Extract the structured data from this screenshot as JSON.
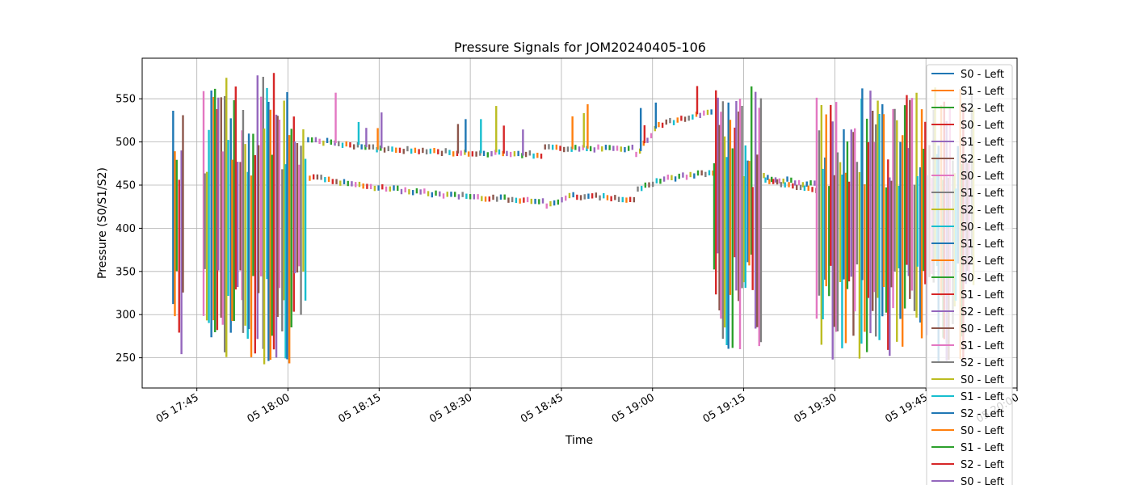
{
  "chart_data": {
    "type": "line",
    "title": "Pressure Signals for JOM20240405-106",
    "xlabel": "Time",
    "ylabel": "Pressure (S0/S1/S2)",
    "grid": true,
    "legend_position": "upper-right",
    "x_axis": {
      "type": "time",
      "range": [
        "2024-04-05 17:36",
        "2024-04-05 20:00"
      ],
      "ticks": [
        {
          "time": "2024-04-05 17:45",
          "label": "05 17:45"
        },
        {
          "time": "2024-04-05 18:00",
          "label": "05 18:00"
        },
        {
          "time": "2024-04-05 18:15",
          "label": "05 18:15"
        },
        {
          "time": "2024-04-05 18:30",
          "label": "05 18:30"
        },
        {
          "time": "2024-04-05 18:45",
          "label": "05 18:45"
        },
        {
          "time": "2024-04-05 19:00",
          "label": "05 19:00"
        },
        {
          "time": "2024-04-05 19:15",
          "label": "05 19:15"
        },
        {
          "time": "2024-04-05 19:30",
          "label": "05 19:30"
        },
        {
          "time": "2024-04-05 19:45",
          "label": "05 19:45"
        },
        {
          "time": "2024-04-05 20:00",
          "label": "05 20:00"
        }
      ]
    },
    "y_axis": {
      "range": [
        215,
        597
      ],
      "ticks": [
        250,
        300,
        350,
        400,
        450,
        500,
        550
      ]
    },
    "colors": [
      "#1f77b4",
      "#ff7f0e",
      "#2ca02c",
      "#d62728",
      "#9467bd",
      "#8c564b",
      "#e377c2",
      "#7f7f7f",
      "#bcbd22",
      "#17becf"
    ],
    "legend": [
      "S0 - Left",
      "S1 - Left",
      "S2 - Left",
      "S0 - Left",
      "S1 - Left",
      "S2 - Left",
      "S0 - Left",
      "S1 - Left",
      "S2 - Left",
      "S0 - Left",
      "S1 - Left",
      "S2 - Left",
      "S0 - Left",
      "S1 - Left",
      "S2 - Left",
      "S0 - Left",
      "S1 - Left",
      "S2 - Left",
      "S0 - Left",
      "S1 - Left",
      "S2 - Left",
      "S0 - Left",
      "S1 - Left",
      "S2 - Left",
      "S0 - Left"
    ],
    "segments": [
      {
        "start": "2024-04-05 17:41",
        "end": "2024-04-05 17:43",
        "pattern": "spike",
        "low": 245,
        "high": 550
      },
      {
        "start": "2024-04-05 17:46",
        "end": "2024-04-05 18:03",
        "pattern": "spike",
        "low": 240,
        "high": 580
      },
      {
        "start": "2024-04-05 18:03",
        "end": "2024-04-05 18:42",
        "pattern": "steady",
        "upper": [
          [
            0,
            503
          ],
          [
            0.3,
            492
          ],
          [
            0.6,
            488
          ],
          [
            1.0,
            485
          ]
        ],
        "lower": [
          [
            0,
            460
          ],
          [
            0.3,
            447
          ],
          [
            0.6,
            438
          ],
          [
            1.0,
            432
          ]
        ]
      },
      {
        "start": "2024-04-05 18:42",
        "end": "2024-04-05 18:57",
        "pattern": "steady",
        "upper": [
          [
            0,
            493
          ],
          [
            1.0,
            492
          ]
        ],
        "lower": [
          [
            0,
            425
          ],
          [
            0.3,
            438
          ],
          [
            1.0,
            434
          ]
        ]
      },
      {
        "start": "2024-04-05 18:57",
        "end": "2024-04-05 19:10",
        "pattern": "steady",
        "upper": [
          [
            0,
            482
          ],
          [
            0.3,
            520
          ],
          [
            1.0,
            535
          ]
        ],
        "lower": [
          [
            0,
            445
          ],
          [
            0.3,
            456
          ],
          [
            1.0,
            465
          ]
        ]
      },
      {
        "start": "2024-04-05 19:10",
        "end": "2024-04-05 19:18",
        "pattern": "spike",
        "low": 252,
        "high": 565
      },
      {
        "start": "2024-04-05 19:18",
        "end": "2024-04-05 19:27",
        "pattern": "steady",
        "upper": [
          [
            0,
            460
          ],
          [
            1.0,
            450
          ]
        ],
        "lower": [
          [
            0,
            455
          ],
          [
            1.0,
            445
          ]
        ]
      },
      {
        "start": "2024-04-05 19:27",
        "end": "2024-04-05 19:53",
        "pattern": "spike",
        "low": 245,
        "high": 565
      }
    ]
  }
}
